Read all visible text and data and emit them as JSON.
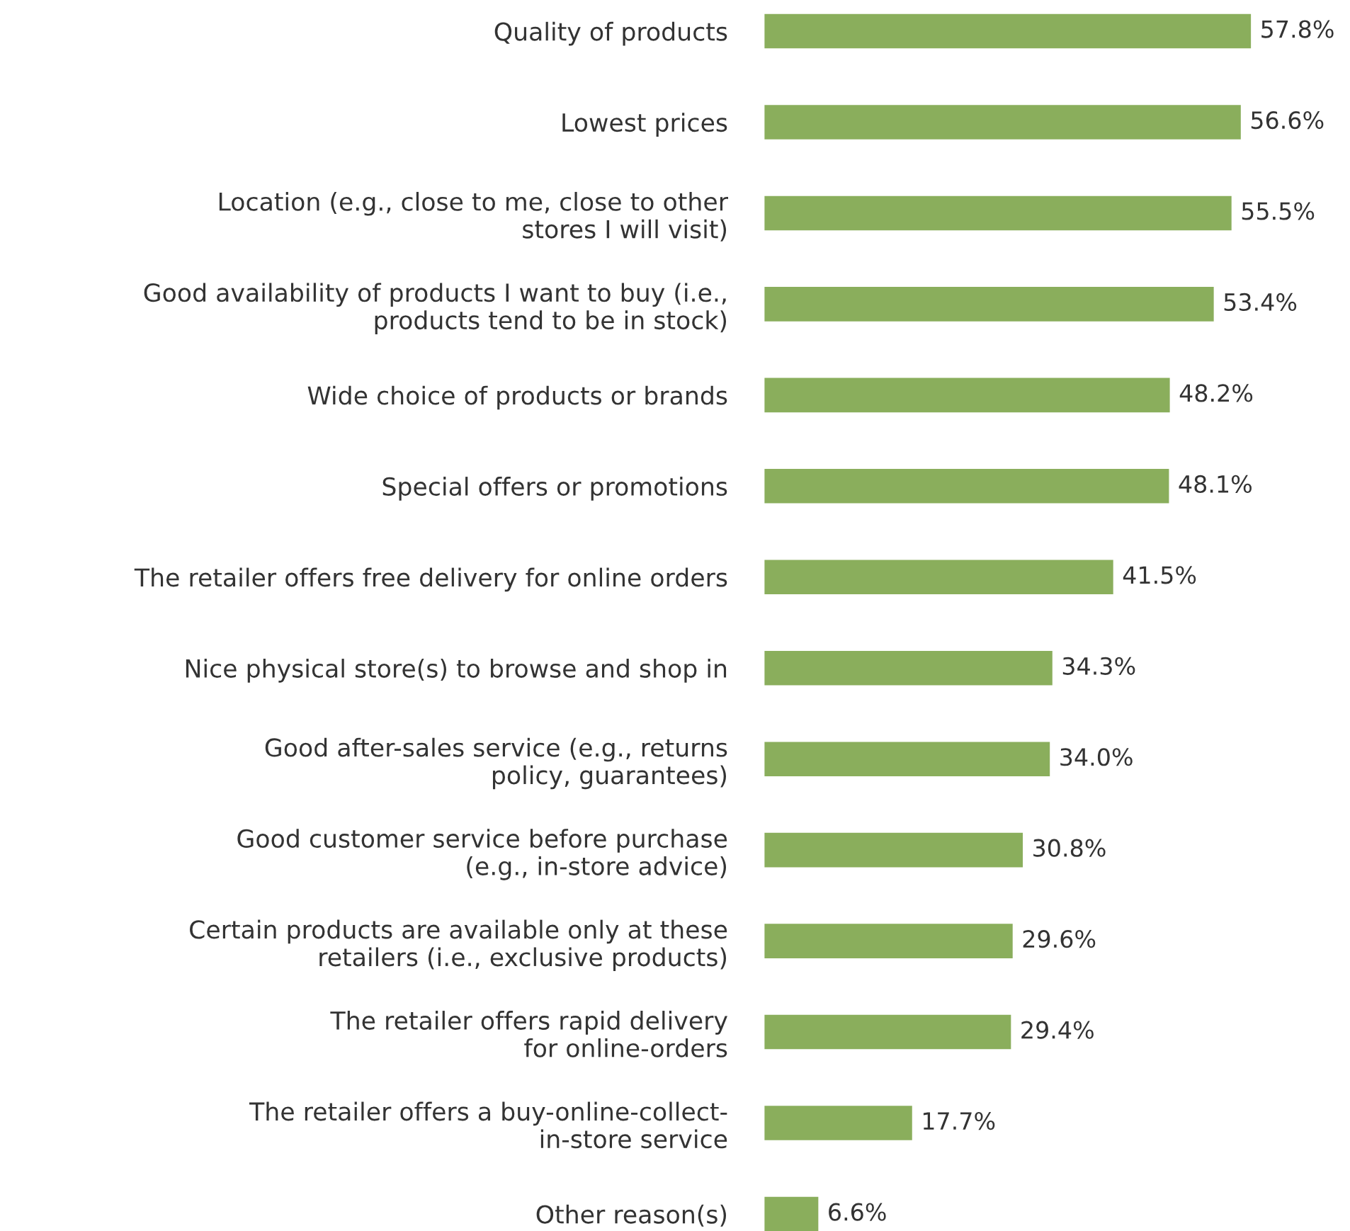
{
  "chart_data": {
    "type": "bar",
    "orientation": "horizontal",
    "categories": [
      "Quality of products",
      "Lowest prices",
      "Location (e.g., close to me, close to other\nstores I will visit)",
      "Good availability of products I want to buy (i.e.,\nproducts tend to be in stock)",
      "Wide choice of products or brands",
      "Special offers or promotions",
      "The retailer offers free delivery for online orders",
      "Nice physical store(s) to browse and shop in",
      "Good after-sales service (e.g., returns\npolicy, guarantees)",
      "Good customer service before purchase\n(e.g., in-store advice)",
      "Certain products are available only at these\nretailers (i.e., exclusive products)",
      "The retailer offers rapid delivery\nfor online-orders",
      "The retailer offers a buy-online-collect-\nin-store service",
      "Other reason(s)"
    ],
    "values": [
      57.8,
      56.6,
      55.5,
      53.4,
      48.2,
      48.1,
      41.5,
      34.3,
      34.0,
      30.8,
      29.6,
      29.4,
      17.7,
      6.6
    ],
    "value_labels": [
      "57.8%",
      "56.6%",
      "55.5%",
      "53.4%",
      "48.2%",
      "48.1%",
      "41.5%",
      "34.3%",
      "34.0%",
      "30.8%",
      "29.6%",
      "29.4%",
      "17.7%",
      "6.6%"
    ],
    "color": "#8aae5c",
    "tick_labels": "y",
    "grid": false,
    "legend": false
  }
}
